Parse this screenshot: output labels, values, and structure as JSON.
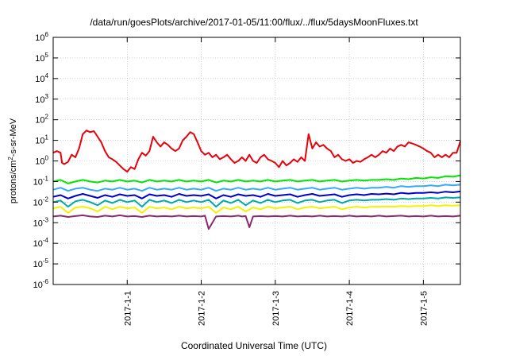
{
  "chart_data": {
    "type": "line",
    "title": "/data/run/goesPlots/archive/2017-01-05/11:00/flux/../flux/5daysMoonFluxes.txt",
    "xlabel": "Coordinated Universal Time (UTC)",
    "ylabel": "protons/cm²-s-sr-MeV",
    "yscale": "log",
    "ylim": [
      1e-06,
      1000000.0
    ],
    "xlim": [
      "2016-12-31 00:00",
      "2017-01-05 12:00"
    ],
    "grid": true,
    "y_ticks": [
      {
        "base": "10",
        "exp": "-6",
        "value": 1e-06
      },
      {
        "base": "10",
        "exp": "-5",
        "value": 1e-05
      },
      {
        "base": "10",
        "exp": "-4",
        "value": 0.0001
      },
      {
        "base": "10",
        "exp": "-3",
        "value": 0.001
      },
      {
        "base": "10",
        "exp": "-2",
        "value": 0.01
      },
      {
        "base": "10",
        "exp": "-1",
        "value": 0.1
      },
      {
        "base": "10",
        "exp": "0",
        "value": 1
      },
      {
        "base": "10",
        "exp": "1",
        "value": 10
      },
      {
        "base": "10",
        "exp": "2",
        "value": 100
      },
      {
        "base": "10",
        "exp": "3",
        "value": 1000
      },
      {
        "base": "10",
        "exp": "4",
        "value": 10000
      },
      {
        "base": "10",
        "exp": "5",
        "value": 100000
      },
      {
        "base": "10",
        "exp": "6",
        "value": 1000000
      }
    ],
    "x_ticks": [
      {
        "label": "2017-1-1",
        "day": 1
      },
      {
        "label": "2017-1-2",
        "day": 2
      },
      {
        "label": "2017-1-3",
        "day": 3
      },
      {
        "label": "2017-1-4",
        "day": 4
      },
      {
        "label": "2017-1-5",
        "day": 5
      }
    ],
    "x_days_start": 0,
    "x_days_end": 5.5,
    "series": [
      {
        "color": "#e8000b",
        "x": [
          0.0,
          0.05,
          0.1,
          0.12,
          0.15,
          0.2,
          0.25,
          0.3,
          0.35,
          0.4,
          0.45,
          0.5,
          0.55,
          0.6,
          0.65,
          0.7,
          0.75,
          0.8,
          0.85,
          0.9,
          0.95,
          1.0,
          1.05,
          1.1,
          1.15,
          1.2,
          1.25,
          1.3,
          1.35,
          1.4,
          1.45,
          1.5,
          1.55,
          1.6,
          1.65,
          1.7,
          1.75,
          1.8,
          1.85,
          1.9,
          1.95,
          2.0,
          2.05,
          2.1,
          2.15,
          2.2,
          2.25,
          2.3,
          2.35,
          2.4,
          2.45,
          2.5,
          2.55,
          2.6,
          2.65,
          2.7,
          2.75,
          2.8,
          2.85,
          2.9,
          2.95,
          3.0,
          3.05,
          3.1,
          3.15,
          3.2,
          3.25,
          3.3,
          3.35,
          3.4,
          3.45,
          3.5,
          3.55,
          3.6,
          3.65,
          3.7,
          3.75,
          3.8,
          3.85,
          3.9,
          3.95,
          4.0,
          4.05,
          4.1,
          4.15,
          4.2,
          4.25,
          4.3,
          4.35,
          4.4,
          4.45,
          4.5,
          4.55,
          4.6,
          4.65,
          4.7,
          4.75,
          4.8,
          4.85,
          4.9,
          4.95,
          5.0,
          5.05,
          5.1,
          5.15,
          5.2,
          5.25,
          5.3,
          5.35,
          5.4,
          5.45,
          5.5
        ],
        "values": [
          2.5,
          3,
          2.5,
          0.8,
          0.7,
          0.9,
          2,
          1.5,
          4,
          20,
          30,
          25,
          28,
          15,
          8,
          3,
          1.5,
          1.2,
          0.9,
          0.6,
          0.4,
          0.3,
          0.5,
          0.4,
          1.2,
          2.5,
          1.8,
          3,
          15,
          8,
          5,
          8,
          6,
          4,
          3,
          4,
          10,
          15,
          25,
          20,
          8,
          3,
          2,
          2.5,
          1.5,
          2,
          1.2,
          1.5,
          2,
          1.2,
          0.8,
          1,
          1.5,
          1,
          2,
          1,
          0.8,
          1.5,
          2,
          1.2,
          1,
          0.8,
          0.5,
          1,
          0.6,
          0.8,
          1.2,
          0.9,
          1.5,
          1,
          20,
          4,
          8,
          5,
          6,
          4,
          3,
          1.5,
          2,
          1.2,
          1,
          1.2,
          0.8,
          1,
          0.9,
          1.2,
          1.5,
          2,
          1.5,
          2,
          3,
          2.5,
          4,
          3,
          5,
          6,
          5,
          8,
          7,
          6,
          5,
          4,
          3,
          2.5,
          1.5,
          2,
          1.5,
          2,
          1.5,
          2.5,
          2.5,
          9
        ]
      },
      {
        "color": "#00e600",
        "x": [
          0.0,
          0.1,
          0.2,
          0.3,
          0.4,
          0.5,
          0.6,
          0.7,
          0.8,
          0.9,
          1.0,
          1.1,
          1.2,
          1.3,
          1.4,
          1.5,
          1.6,
          1.7,
          1.8,
          1.9,
          2.0,
          2.1,
          2.2,
          2.3,
          2.4,
          2.5,
          2.6,
          2.7,
          2.8,
          2.9,
          3.0,
          3.1,
          3.2,
          3.3,
          3.4,
          3.5,
          3.6,
          3.7,
          3.8,
          3.9,
          4.0,
          4.1,
          4.2,
          4.3,
          4.4,
          4.5,
          4.6,
          4.7,
          4.8,
          4.9,
          5.0,
          5.1,
          5.2,
          5.3,
          5.4,
          5.5
        ],
        "values": [
          0.1,
          0.12,
          0.08,
          0.1,
          0.12,
          0.1,
          0.09,
          0.11,
          0.1,
          0.12,
          0.1,
          0.11,
          0.09,
          0.12,
          0.1,
          0.11,
          0.1,
          0.12,
          0.1,
          0.11,
          0.1,
          0.12,
          0.09,
          0.11,
          0.1,
          0.12,
          0.1,
          0.11,
          0.1,
          0.12,
          0.1,
          0.11,
          0.12,
          0.1,
          0.11,
          0.12,
          0.1,
          0.11,
          0.12,
          0.1,
          0.11,
          0.12,
          0.11,
          0.12,
          0.12,
          0.13,
          0.12,
          0.14,
          0.13,
          0.15,
          0.14,
          0.16,
          0.15,
          0.18,
          0.17,
          0.2
        ]
      },
      {
        "color": "#33aaff",
        "x": [
          0.0,
          0.1,
          0.2,
          0.3,
          0.4,
          0.5,
          0.6,
          0.7,
          0.8,
          0.9,
          1.0,
          1.1,
          1.2,
          1.3,
          1.4,
          1.5,
          1.6,
          1.7,
          1.8,
          1.9,
          2.0,
          2.1,
          2.2,
          2.3,
          2.4,
          2.5,
          2.6,
          2.7,
          2.8,
          2.9,
          3.0,
          3.1,
          3.2,
          3.3,
          3.4,
          3.5,
          3.6,
          3.7,
          3.8,
          3.9,
          4.0,
          4.1,
          4.2,
          4.3,
          4.4,
          4.5,
          4.6,
          4.7,
          4.8,
          4.9,
          5.0,
          5.1,
          5.2,
          5.3,
          5.4,
          5.5
        ],
        "values": [
          0.04,
          0.05,
          0.035,
          0.045,
          0.05,
          0.04,
          0.035,
          0.045,
          0.04,
          0.05,
          0.04,
          0.045,
          0.035,
          0.05,
          0.04,
          0.045,
          0.04,
          0.05,
          0.04,
          0.045,
          0.04,
          0.05,
          0.035,
          0.045,
          0.04,
          0.05,
          0.04,
          0.045,
          0.04,
          0.05,
          0.04,
          0.045,
          0.05,
          0.04,
          0.045,
          0.05,
          0.04,
          0.045,
          0.05,
          0.04,
          0.045,
          0.05,
          0.045,
          0.05,
          0.05,
          0.055,
          0.05,
          0.06,
          0.055,
          0.06,
          0.06,
          0.065,
          0.06,
          0.07,
          0.065,
          0.07
        ]
      },
      {
        "color": "#0000cc",
        "x": [
          0.0,
          0.1,
          0.2,
          0.3,
          0.4,
          0.5,
          0.6,
          0.7,
          0.8,
          0.9,
          1.0,
          1.1,
          1.2,
          1.3,
          1.4,
          1.5,
          1.6,
          1.7,
          1.8,
          1.9,
          2.0,
          2.1,
          2.2,
          2.3,
          2.4,
          2.5,
          2.6,
          2.7,
          2.8,
          2.9,
          3.0,
          3.1,
          3.2,
          3.3,
          3.4,
          3.5,
          3.6,
          3.7,
          3.8,
          3.9,
          4.0,
          4.1,
          4.2,
          4.3,
          4.4,
          4.5,
          4.6,
          4.7,
          4.8,
          4.9,
          5.0,
          5.1,
          5.2,
          5.3,
          5.4,
          5.5
        ],
        "values": [
          0.018,
          0.022,
          0.015,
          0.02,
          0.025,
          0.02,
          0.016,
          0.022,
          0.018,
          0.024,
          0.02,
          0.022,
          0.015,
          0.024,
          0.02,
          0.022,
          0.018,
          0.025,
          0.02,
          0.022,
          0.02,
          0.024,
          0.015,
          0.022,
          0.018,
          0.024,
          0.02,
          0.022,
          0.018,
          0.025,
          0.02,
          0.022,
          0.024,
          0.018,
          0.022,
          0.025,
          0.02,
          0.022,
          0.024,
          0.018,
          0.022,
          0.024,
          0.022,
          0.025,
          0.024,
          0.026,
          0.024,
          0.028,
          0.026,
          0.028,
          0.028,
          0.03,
          0.028,
          0.032,
          0.03,
          0.033
        ]
      },
      {
        "color": "#00aaaa",
        "x": [
          0.0,
          0.1,
          0.2,
          0.3,
          0.4,
          0.5,
          0.6,
          0.7,
          0.8,
          0.9,
          1.0,
          1.1,
          1.2,
          1.3,
          1.4,
          1.5,
          1.6,
          1.7,
          1.8,
          1.9,
          2.0,
          2.1,
          2.2,
          2.3,
          2.4,
          2.5,
          2.6,
          2.7,
          2.8,
          2.9,
          3.0,
          3.1,
          3.2,
          3.3,
          3.4,
          3.5,
          3.6,
          3.7,
          3.8,
          3.9,
          4.0,
          4.1,
          4.2,
          4.3,
          4.4,
          4.5,
          4.6,
          4.7,
          4.8,
          4.9,
          5.0,
          5.1,
          5.2,
          5.3,
          5.4,
          5.5
        ],
        "values": [
          0.01,
          0.012,
          0.006,
          0.011,
          0.013,
          0.01,
          0.007,
          0.012,
          0.009,
          0.013,
          0.01,
          0.012,
          0.006,
          0.013,
          0.01,
          0.012,
          0.009,
          0.013,
          0.01,
          0.012,
          0.01,
          0.013,
          0.006,
          0.012,
          0.009,
          0.013,
          0.007,
          0.012,
          0.009,
          0.013,
          0.01,
          0.012,
          0.013,
          0.009,
          0.012,
          0.013,
          0.01,
          0.012,
          0.013,
          0.009,
          0.012,
          0.013,
          0.012,
          0.013,
          0.013,
          0.014,
          0.013,
          0.015,
          0.014,
          0.015,
          0.015,
          0.016,
          0.015,
          0.017,
          0.016,
          0.017
        ]
      },
      {
        "color": "#f2f200",
        "x": [
          0.0,
          0.1,
          0.2,
          0.3,
          0.4,
          0.5,
          0.6,
          0.7,
          0.8,
          0.9,
          1.0,
          1.1,
          1.2,
          1.3,
          1.4,
          1.5,
          1.6,
          1.7,
          1.8,
          1.9,
          2.0,
          2.1,
          2.2,
          2.3,
          2.4,
          2.5,
          2.6,
          2.7,
          2.8,
          2.9,
          3.0,
          3.1,
          3.2,
          3.3,
          3.4,
          3.5,
          3.6,
          3.7,
          3.8,
          3.9,
          4.0,
          4.1,
          4.2,
          4.3,
          4.4,
          4.5,
          4.6,
          4.7,
          4.8,
          4.9,
          5.0,
          5.1,
          5.2,
          5.3,
          5.4,
          5.5
        ],
        "values": [
          0.005,
          0.006,
          0.003,
          0.0055,
          0.006,
          0.005,
          0.0035,
          0.006,
          0.0045,
          0.006,
          0.005,
          0.0055,
          0.003,
          0.006,
          0.005,
          0.0055,
          0.0045,
          0.006,
          0.005,
          0.0055,
          0.005,
          0.006,
          0.003,
          0.0055,
          0.0045,
          0.006,
          0.0035,
          0.0055,
          0.0045,
          0.006,
          0.005,
          0.0055,
          0.006,
          0.0045,
          0.0055,
          0.006,
          0.005,
          0.0055,
          0.006,
          0.0045,
          0.0055,
          0.006,
          0.0055,
          0.006,
          0.006,
          0.0062,
          0.006,
          0.0065,
          0.0062,
          0.0065,
          0.0065,
          0.007,
          0.0065,
          0.007,
          0.0068,
          0.007
        ]
      },
      {
        "color": "#8b2a6e",
        "x": [
          0.0,
          0.1,
          0.2,
          0.3,
          0.4,
          0.5,
          0.6,
          0.7,
          0.8,
          0.9,
          1.0,
          1.1,
          1.2,
          1.3,
          1.4,
          1.5,
          1.6,
          1.7,
          1.8,
          1.9,
          2.0,
          2.05,
          2.1,
          2.2,
          2.3,
          2.4,
          2.5,
          2.55,
          2.6,
          2.65,
          2.7,
          2.8,
          2.9,
          3.0,
          3.1,
          3.2,
          3.3,
          3.4,
          3.5,
          3.6,
          3.7,
          3.8,
          3.9,
          4.0,
          4.1,
          4.2,
          4.3,
          4.4,
          4.5,
          4.6,
          4.7,
          4.8,
          4.9,
          5.0,
          5.1,
          5.2,
          5.3,
          5.4,
          5.5
        ],
        "values": [
          0.002,
          0.0022,
          0.0019,
          0.0021,
          0.0023,
          0.002,
          0.0019,
          0.0022,
          0.002,
          0.0023,
          0.002,
          0.0021,
          0.0019,
          0.0022,
          0.002,
          0.0021,
          0.002,
          0.0022,
          0.002,
          0.0021,
          0.002,
          0.0022,
          0.0005,
          0.002,
          0.0021,
          0.002,
          0.0022,
          0.002,
          0.0021,
          0.0006,
          0.002,
          0.0021,
          0.002,
          0.0021,
          0.002,
          0.0022,
          0.002,
          0.0021,
          0.002,
          0.0022,
          0.002,
          0.0021,
          0.002,
          0.0022,
          0.002,
          0.0021,
          0.002,
          0.0022,
          0.002,
          0.0021,
          0.0022,
          0.002,
          0.0021,
          0.002,
          0.0022,
          0.002,
          0.0021,
          0.002,
          0.0022
        ]
      }
    ]
  }
}
